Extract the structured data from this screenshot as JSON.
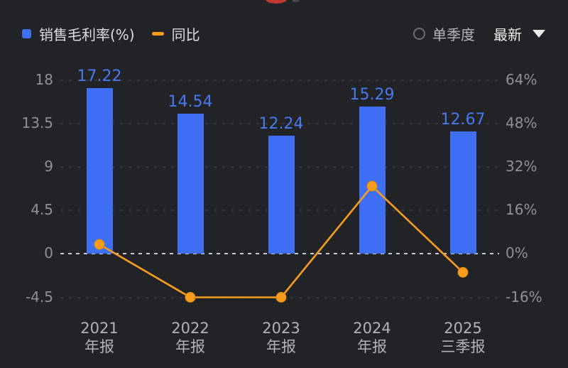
{
  "header": {
    "legend": [
      {
        "label": "销售毛利率(%)",
        "swatch": "blue-square",
        "color": "#3e6ff5"
      },
      {
        "label": "同比",
        "swatch": "orange-dash",
        "color": "#f79d1e"
      }
    ],
    "controls": {
      "radio_label": "单季度",
      "radio_checked": false,
      "dropdown_label": "最新",
      "caret_icon": "triangle-down"
    }
  },
  "chart_data": {
    "type": "bar+line",
    "title": "",
    "categories": [
      {
        "line1": "2021",
        "line2": "年报"
      },
      {
        "line1": "2022",
        "line2": "年报"
      },
      {
        "line1": "2023",
        "line2": "年报"
      },
      {
        "line1": "2024",
        "line2": "年报"
      },
      {
        "line1": "2025",
        "line2": "三季报"
      }
    ],
    "series": [
      {
        "name": "销售毛利率(%)",
        "type": "bar",
        "axis": "left",
        "values": [
          17.22,
          14.54,
          12.24,
          15.29,
          12.67
        ],
        "value_labels": [
          "17.22",
          "14.54",
          "12.24",
          "15.29",
          "12.67"
        ],
        "color": "#3e6ff5"
      },
      {
        "name": "同比",
        "type": "line",
        "axis": "right",
        "values_percent_estimated": [
          3.5,
          -16,
          -16,
          25,
          -6.8
        ],
        "color": "#f79d1e"
      }
    ],
    "left_axis": {
      "tick_values": [
        18,
        13.5,
        9,
        4.5,
        0,
        -4.5
      ],
      "tick_labels": [
        "18",
        "13.5",
        "9",
        "4.5",
        "0",
        "-4.5"
      ],
      "range": [
        -4.5,
        18
      ]
    },
    "right_axis": {
      "tick_values": [
        64,
        48,
        32,
        16,
        0,
        -16
      ],
      "tick_labels": [
        "64%",
        "48%",
        "32%",
        "16%",
        "0%",
        "-16%"
      ],
      "range": [
        -16,
        64
      ]
    },
    "grid": "dashed-horizontal",
    "zero_line": "light-dashed",
    "legend_position": "top-left"
  },
  "colors": {
    "background": "#212327",
    "bar": "#3e6ff5",
    "bar_value_label": "#4a79ee",
    "line": "#f79d1e",
    "axis_text": "#8f9195",
    "category_text": "#b2b4b8",
    "legend_text": "#dcdee1",
    "zero_line": "#caccd0"
  }
}
